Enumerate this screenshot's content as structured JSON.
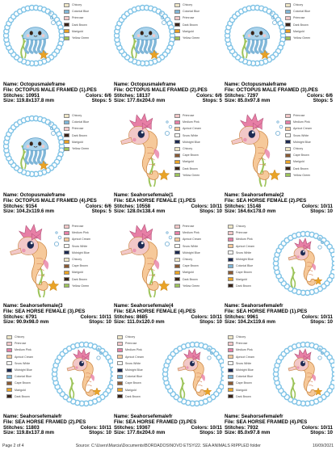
{
  "designs": [
    {
      "kind": "octo-frame",
      "name": "Octopusmaleframe",
      "file": "OCTOPUS MALE FRAMED (1).PES",
      "stitches": "10951",
      "colors": "6/6",
      "size": "119.8x137.8 mm",
      "stops": "5",
      "legend": [
        [
          "Chicory",
          "#efe6c6"
        ],
        [
          "Colonial Blue",
          "#7fb6d8"
        ],
        [
          "Primrose",
          "#f2c8c8"
        ],
        [
          "Dark Brown",
          "#3a2418"
        ],
        [
          "Marigold",
          "#e9a326"
        ],
        [
          "Yellow Green",
          "#9dc45a"
        ]
      ]
    },
    {
      "kind": "octo-frame",
      "name": "Octopusmaleframe",
      "file": "OCTOPUS MALE FRAMED (2).PES",
      "stitches": "18137",
      "colors": "6/6",
      "size": "177.6x204.0 mm",
      "stops": "5",
      "legend": [
        [
          "Chicory",
          "#efe6c6"
        ],
        [
          "Colonial Blue",
          "#7fb6d8"
        ],
        [
          "Primrose",
          "#f2c8c8"
        ],
        [
          "Dark Brown",
          "#3a2418"
        ],
        [
          "Marigold",
          "#e9a326"
        ],
        [
          "Yellow Green",
          "#9dc45a"
        ]
      ]
    },
    {
      "kind": "octo-frame",
      "name": "Octopusmaleframe",
      "file": "OCTOPUS MALE FRAMED (3).PES",
      "stitches": "7297",
      "colors": "6/6",
      "size": "85.0x97.8 mm",
      "stops": "5",
      "legend": [
        [
          "Chicory",
          "#efe6c6"
        ],
        [
          "Colonial Blue",
          "#7fb6d8"
        ],
        [
          "Primrose",
          "#f2c8c8"
        ],
        [
          "Dark Brown",
          "#3a2418"
        ],
        [
          "Marigold",
          "#e9a326"
        ],
        [
          "Yellow Green",
          "#9dc45a"
        ]
      ]
    },
    {
      "kind": "octo-frame",
      "name": "Octopusmaleframe",
      "file": "OCTOPUS MALE FRAMED (4).PES",
      "stitches": "9154",
      "colors": "6/6",
      "size": "104.2x119.6 mm",
      "stops": "5",
      "legend": [
        [
          "Chicory",
          "#efe6c6"
        ],
        [
          "Colonial Blue",
          "#7fb6d8"
        ],
        [
          "Primrose",
          "#f2c8c8"
        ],
        [
          "Dark Brown",
          "#3a2418"
        ],
        [
          "Marigold",
          "#e9a326"
        ],
        [
          "Yellow Green",
          "#9dc45a"
        ]
      ]
    },
    {
      "kind": "seahorse",
      "name": "Seahorsefemale(1",
      "file": "SEA HORSE FEMALE (1).PES",
      "stitches": "10558",
      "colors": "10/11",
      "size": "128.0x138.4 mm",
      "stops": "10",
      "legend": [
        [
          "Primrose",
          "#f2c8c8"
        ],
        [
          "Medium Pink",
          "#e77fa6"
        ],
        [
          "Apricot Cream",
          "#f6c99a"
        ],
        [
          "Snow White",
          "#f8f8f4"
        ],
        [
          "Midnight Blue",
          "#1d2a52"
        ],
        [
          "Chicory",
          "#efe6c6"
        ],
        [
          "Cape Brown",
          "#8a5a34"
        ],
        [
          "Marigold",
          "#e9a326"
        ],
        [
          "Dark Brown",
          "#3a2418"
        ],
        [
          "Yellow Green",
          "#9dc45a"
        ]
      ]
    },
    {
      "kind": "seahorse",
      "name": "Seahorsefemale(2",
      "file": "SEA HORSE FEMALE (2).PES",
      "stitches": "15148",
      "colors": "10/11",
      "size": "164.6x178.0 mm",
      "stops": "10",
      "legend": [
        [
          "Primrose",
          "#f2c8c8"
        ],
        [
          "Medium Pink",
          "#e77fa6"
        ],
        [
          "Apricot Cream",
          "#f6c99a"
        ],
        [
          "Snow White",
          "#f8f8f4"
        ],
        [
          "Midnight Blue",
          "#1d2a52"
        ],
        [
          "Chicory",
          "#efe6c6"
        ],
        [
          "Cape Brown",
          "#8a5a34"
        ],
        [
          "Marigold",
          "#e9a326"
        ],
        [
          "Dark Brown",
          "#3a2418"
        ],
        [
          "Yellow Green",
          "#9dc45a"
        ]
      ]
    },
    {
      "kind": "seahorse",
      "name": "Seahorsefemale(3",
      "file": "SEA HORSE FEMALE (3).PES",
      "stitches": "6791",
      "colors": "10/11",
      "size": "90.9x98.0 mm",
      "stops": "10",
      "legend": [
        [
          "Primrose",
          "#f2c8c8"
        ],
        [
          "Medium Pink",
          "#e77fa6"
        ],
        [
          "Apricot Cream",
          "#f6c99a"
        ],
        [
          "Snow White",
          "#f8f8f4"
        ],
        [
          "Midnight Blue",
          "#1d2a52"
        ],
        [
          "Chicory",
          "#efe6c6"
        ],
        [
          "Cape Brown",
          "#8a5a34"
        ],
        [
          "Marigold",
          "#e9a326"
        ],
        [
          "Dark Brown",
          "#3a2418"
        ],
        [
          "Yellow Green",
          "#9dc45a"
        ]
      ]
    },
    {
      "kind": "seahorse",
      "name": "Seahorsefemale(4",
      "file": "SEA HORSE FEMALE (4).PES",
      "stitches": "8685",
      "colors": "10/11",
      "size": "111.0x120.0 mm",
      "stops": "10",
      "legend": [
        [
          "Primrose",
          "#f2c8c8"
        ],
        [
          "Medium Pink",
          "#e77fa6"
        ],
        [
          "Apricot Cream",
          "#f6c99a"
        ],
        [
          "Snow White",
          "#f8f8f4"
        ],
        [
          "Midnight Blue",
          "#1d2a52"
        ],
        [
          "Chicory",
          "#efe6c6"
        ],
        [
          "Cape Brown",
          "#8a5a34"
        ],
        [
          "Marigold",
          "#e9a326"
        ],
        [
          "Dark Brown",
          "#3a2418"
        ],
        [
          "Yellow Green",
          "#9dc45a"
        ]
      ]
    },
    {
      "kind": "seahorse-frame",
      "name": "Seahorsefemalefr",
      "file": "SEA HORSE FRAMED (1).PES",
      "stitches": "9961",
      "colors": "10/11",
      "size": "104.2x119.6 mm",
      "stops": "10",
      "legend": [
        [
          "Chicory",
          "#efe6c6"
        ],
        [
          "Primrose",
          "#f2c8c8"
        ],
        [
          "Medium Pink",
          "#e77fa6"
        ],
        [
          "Apricot Cream",
          "#f6c99a"
        ],
        [
          "Snow White",
          "#f8f8f4"
        ],
        [
          "Midnight Blue",
          "#1d2a52"
        ],
        [
          "Colonial Blue",
          "#7fb6d8"
        ],
        [
          "Cape Brown",
          "#8a5a34"
        ],
        [
          "Marigold",
          "#e9a326"
        ],
        [
          "Dark Brown",
          "#3a2418"
        ]
      ]
    },
    {
      "kind": "seahorse-frame",
      "name": "Seahorsefemalefr",
      "file": "SEA HORSE FRAMED (2).PES",
      "stitches": "11803",
      "colors": "10/11",
      "size": "119.8x137.8 mm",
      "stops": "10",
      "legend": [
        [
          "Chicory",
          "#efe6c6"
        ],
        [
          "Primrose",
          "#f2c8c8"
        ],
        [
          "Medium Pink",
          "#e77fa6"
        ],
        [
          "Apricot Cream",
          "#f6c99a"
        ],
        [
          "Snow White",
          "#f8f8f4"
        ],
        [
          "Midnight Blue",
          "#1d2a52"
        ],
        [
          "Colonial Blue",
          "#7fb6d8"
        ],
        [
          "Cape Brown",
          "#8a5a34"
        ],
        [
          "Marigold",
          "#e9a326"
        ],
        [
          "Dark Brown",
          "#3a2418"
        ]
      ]
    },
    {
      "kind": "seahorse-frame",
      "name": "Seahorsefemalefr",
      "file": "SEA HORSE FRAMED (3).PES",
      "stitches": "19367",
      "colors": "10/11",
      "size": "177.6x204.0 mm",
      "stops": "10",
      "legend": [
        [
          "Chicory",
          "#efe6c6"
        ],
        [
          "Primrose",
          "#f2c8c8"
        ],
        [
          "Medium Pink",
          "#e77fa6"
        ],
        [
          "Apricot Cream",
          "#f6c99a"
        ],
        [
          "Snow White",
          "#f8f8f4"
        ],
        [
          "Midnight Blue",
          "#1d2a52"
        ],
        [
          "Colonial Blue",
          "#7fb6d8"
        ],
        [
          "Cape Brown",
          "#8a5a34"
        ],
        [
          "Marigold",
          "#e9a326"
        ],
        [
          "Dark Brown",
          "#3a2418"
        ]
      ]
    },
    {
      "kind": "seahorse-frame",
      "name": "Seahorsefemalefr",
      "file": "SEA HORSE FRAMED (4).PES",
      "stitches": "7932",
      "colors": "10/11",
      "size": "85.0x97.8 mm",
      "stops": "10",
      "legend": [
        [
          "Chicory",
          "#efe6c6"
        ],
        [
          "Primrose",
          "#f2c8c8"
        ],
        [
          "Medium Pink",
          "#e77fa6"
        ],
        [
          "Apricot Cream",
          "#f6c99a"
        ],
        [
          "Snow White",
          "#f8f8f4"
        ],
        [
          "Midnight Blue",
          "#1d2a52"
        ],
        [
          "Colonial Blue",
          "#7fb6d8"
        ],
        [
          "Cape Brown",
          "#8a5a34"
        ],
        [
          "Marigold",
          "#e9a326"
        ],
        [
          "Dark Brown",
          "#3a2418"
        ]
      ]
    }
  ],
  "labels": {
    "name": "Name:",
    "file": "File:",
    "stitches": "Stitches:",
    "colors": "Colors:",
    "size": "Size:",
    "stops": "Stops:"
  },
  "footer": {
    "page": "Page 2 of 4",
    "source": "Source: C:\\Users\\Marcia\\Documents\\BORDADOS\\NOVO ETSY\\22. SEA ANIMALS RIPPLED folder",
    "date": "16/09/2021"
  }
}
